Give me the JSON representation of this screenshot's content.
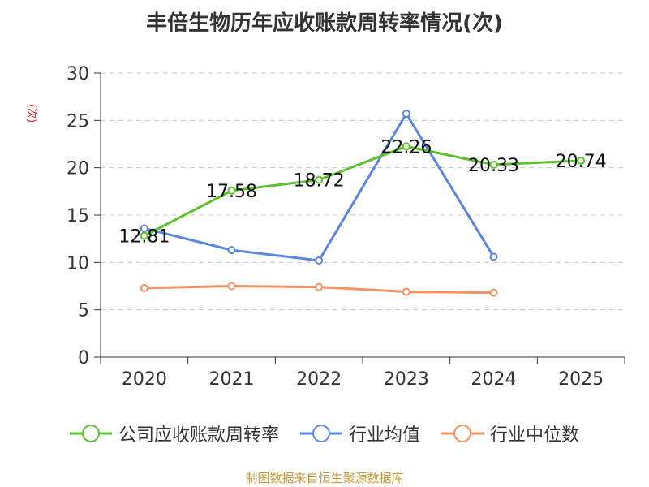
{
  "chart_data": {
    "type": "line",
    "title": "丰倍生物历年应收账款周转率情况(次)",
    "ylabel": "(次)",
    "categories": [
      "2020",
      "2021",
      "2022",
      "2023",
      "2024",
      "2025"
    ],
    "ylim": [
      0,
      30
    ],
    "yticks": [
      0,
      5,
      10,
      15,
      20,
      25,
      30
    ],
    "grid": true,
    "legend_position": "bottom",
    "series": [
      {
        "name": "公司应收账款周转率",
        "color": "#5bc22e",
        "values": [
          12.81,
          17.58,
          18.72,
          22.26,
          20.33,
          20.74
        ],
        "show_labels": true
      },
      {
        "name": "行业均值",
        "color": "#5b85de",
        "values": [
          13.6,
          11.3,
          10.2,
          25.7,
          10.6,
          null
        ],
        "show_labels": false
      },
      {
        "name": "行业中位数",
        "color": "#f59260",
        "values": [
          7.3,
          7.5,
          7.4,
          6.9,
          6.8,
          null
        ],
        "show_labels": false
      }
    ]
  },
  "source": "制图数据来自恒生聚源数据库"
}
